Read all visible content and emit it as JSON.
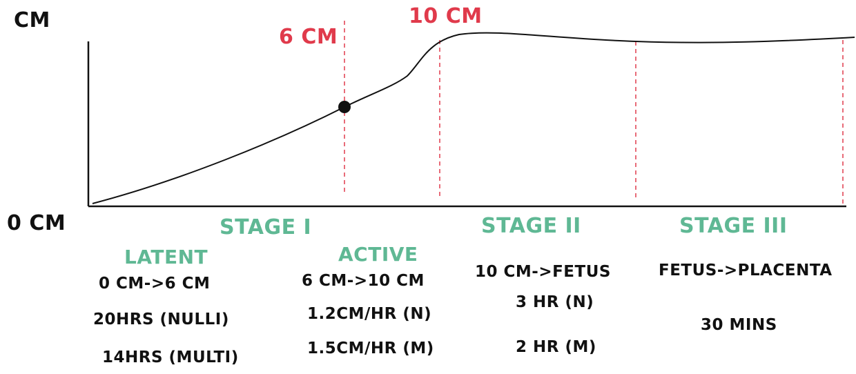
{
  "axis": {
    "y_top_label": "CM",
    "y_bottom_label": "0 CM"
  },
  "markers": {
    "six_cm": "6 CM",
    "ten_cm": "10 CM"
  },
  "stages": {
    "stage1": {
      "title": "STAGE I",
      "latent": {
        "title": "LATENT",
        "range": "0 CM->6 CM",
        "nulli": "20HRS (NULLI)",
        "multi": "14HRS (MULTI)"
      },
      "active": {
        "title": "ACTIVE",
        "range": "6 CM->10 CM",
        "rate_n": "1.2CM/HR (N)",
        "rate_m": "1.5CM/HR (M)"
      }
    },
    "stage2": {
      "title": "STAGE II",
      "range": "10 CM->FETUS",
      "time_n": "3 HR (N)",
      "time_m": "2 HR (M)"
    },
    "stage3": {
      "title": "STAGE III",
      "range": "FETUS->PLACENTA",
      "time": "30 MINS"
    }
  },
  "colors": {
    "curve": "#111111",
    "marker_lines": "#e03a4b",
    "stage_titles": "#5fb894"
  }
}
